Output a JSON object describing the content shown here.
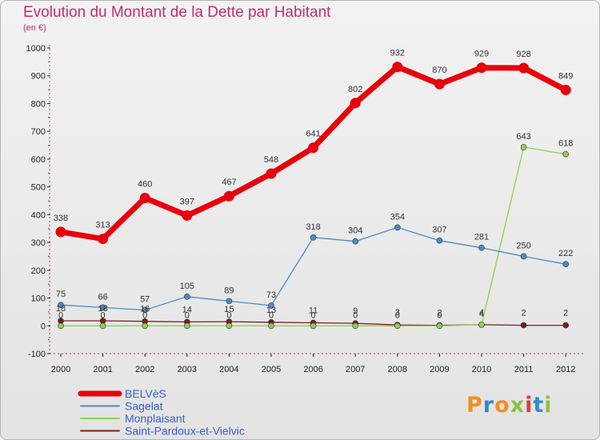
{
  "header": {
    "title": "Evolution du Montant de la Dette par Habitant",
    "unit": "(en €)"
  },
  "logo": {
    "text": "Proxiti"
  },
  "chart_data": {
    "type": "line",
    "title": "Evolution du Montant de la Dette par Habitant",
    "subtitle": "(en €)",
    "xlabel": "",
    "ylabel": "",
    "x": [
      2000,
      2001,
      2002,
      2003,
      2004,
      2005,
      2006,
      2007,
      2008,
      2009,
      2010,
      2011,
      2012
    ],
    "ylim": [
      -100,
      1000
    ],
    "yticks": [
      -100,
      0,
      100,
      200,
      300,
      400,
      500,
      600,
      700,
      800,
      900,
      1000
    ],
    "grid": false,
    "legend_position": "bottom-left",
    "series": [
      {
        "name": "BELVèS",
        "color": "#e8000b",
        "values": [
          338,
          313,
          460,
          397,
          467,
          548,
          641,
          802,
          932,
          870,
          929,
          928,
          849
        ]
      },
      {
        "name": "Sagelat",
        "color": "#4a8cc8",
        "values": [
          75,
          66,
          57,
          105,
          89,
          73,
          318,
          304,
          354,
          307,
          281,
          250,
          222
        ]
      },
      {
        "name": "Monplaisant",
        "color": "#8fd14f",
        "values": [
          0,
          0,
          0,
          0,
          0,
          0,
          0,
          0,
          0,
          0,
          4,
          643,
          618
        ]
      },
      {
        "name": "Saint-Pardoux-et-Vielvic",
        "color": "#7a1d1d",
        "values": [
          18,
          18,
          16,
          14,
          15,
          13,
          11,
          9,
          3,
          2,
          4,
          2,
          2
        ]
      }
    ]
  }
}
